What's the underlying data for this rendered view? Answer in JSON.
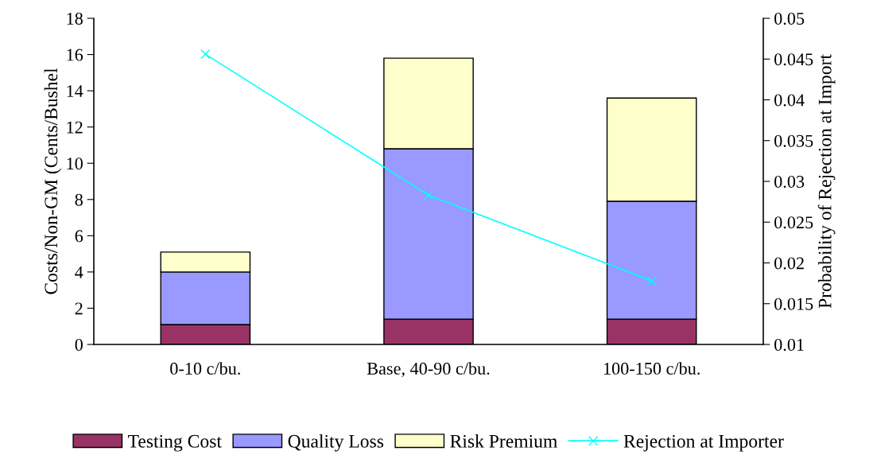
{
  "chart_data": {
    "type": "bar",
    "stacked": true,
    "categories": [
      "0-10 c/bu.",
      "Base, 40-90 c/bu.",
      "100-150 c/bu."
    ],
    "series": [
      {
        "name": "Testing Cost",
        "color": "#993366",
        "values": [
          1.1,
          1.4,
          1.4
        ]
      },
      {
        "name": "Quality Loss",
        "color": "#9999ff",
        "values": [
          2.9,
          9.4,
          6.5
        ]
      },
      {
        "name": "Risk Premium",
        "color": "#ffffcc",
        "values": [
          1.1,
          5.0,
          5.7
        ]
      },
      {
        "name": "Rejection at Importer",
        "type": "line",
        "axis": "y2",
        "color": "#00ffff",
        "marker": "cross",
        "values": [
          0.0456,
          0.0283,
          0.0178
        ]
      }
    ],
    "ylabel": "Costs/Non-GM (Cents/Bushel",
    "y2label": "Probability of Rejection at Import",
    "ylim": [
      0,
      18
    ],
    "yticks": [
      0,
      2,
      4,
      6,
      8,
      10,
      12,
      14,
      16,
      18
    ],
    "y2lim": [
      0.01,
      0.05
    ],
    "y2ticks": [
      0.01,
      0.015,
      0.02,
      0.025,
      0.03,
      0.035,
      0.04,
      0.045,
      0.05
    ],
    "grid": false,
    "legend": "bottom"
  }
}
